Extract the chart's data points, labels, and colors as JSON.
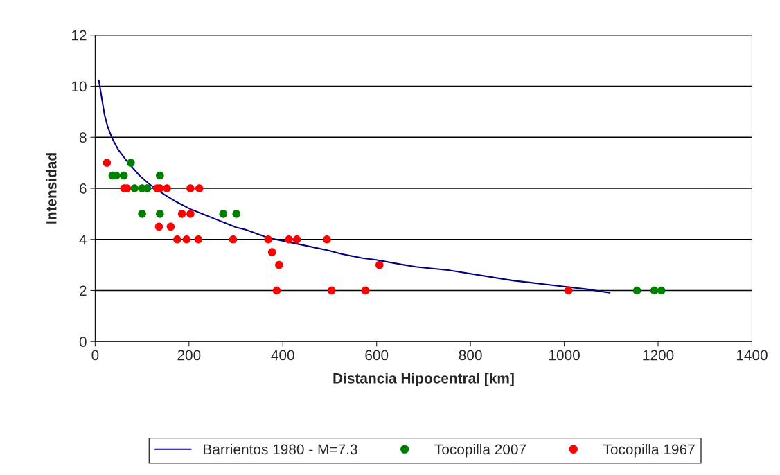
{
  "chart_data": {
    "type": "scatter",
    "xlabel": "Distancia Hipocentral [km]",
    "ylabel": "Intensidad",
    "xlim": [
      0,
      1400
    ],
    "ylim": [
      0,
      12
    ],
    "xticks": [
      0,
      200,
      400,
      600,
      800,
      1000,
      1200,
      1400
    ],
    "yticks": [
      0,
      2,
      4,
      6,
      8,
      10,
      12
    ],
    "grid": "y",
    "legend": "bottom",
    "marker": "circle",
    "series": [
      {
        "name": "Barrientos 1980 - M=7.3",
        "type": "line",
        "color": "#000080",
        "marker": "none",
        "line_style": "solid",
        "x": [
          7.9,
          15.3,
          20.2,
          27.6,
          37.5,
          49.7,
          64.5,
          79.3,
          94.1,
          113.8,
          133.5,
          153,
          173,
          202.5,
          227,
          251.5,
          276,
          301,
          321,
          369,
          427,
          496,
          525,
          570,
          599,
          653,
          683,
          752,
          890,
          974,
          1048,
          1097
        ],
        "values": [
          10.22,
          9.4,
          8.86,
          8.36,
          7.91,
          7.5,
          7.14,
          6.82,
          6.51,
          6.19,
          5.92,
          5.69,
          5.47,
          5.19,
          5.01,
          4.83,
          4.65,
          4.47,
          4.38,
          4.06,
          3.84,
          3.57,
          3.43,
          3.27,
          3.2,
          3.02,
          2.93,
          2.8,
          2.39,
          2.21,
          2.05,
          1.91
        ]
      },
      {
        "name": "Tocopilla 2007",
        "color": "#008000",
        "x": [
          76,
          37,
          45,
          61,
          138,
          84,
          100,
          111,
          100,
          138,
          273,
          301,
          1155,
          1192,
          1207
        ],
        "values": [
          7,
          6.5,
          6.5,
          6.5,
          6.5,
          6,
          6,
          6,
          5,
          5,
          5,
          5,
          2,
          2,
          2
        ]
      },
      {
        "name": "Tocopilla 1967",
        "color": "#ff0000",
        "x": [
          25,
          62,
          68,
          132,
          138,
          153,
          203,
          222,
          185,
          203,
          136,
          161,
          175,
          195,
          220,
          294,
          369,
          413,
          430,
          494,
          377,
          392,
          606,
          387,
          504,
          576,
          1009
        ],
        "values": [
          7,
          6,
          6,
          6,
          6,
          6,
          6,
          6,
          5,
          5,
          4.5,
          4.5,
          4,
          4,
          4,
          4,
          4,
          4,
          4,
          4,
          3.5,
          3,
          3,
          2,
          2,
          2,
          2
        ]
      }
    ]
  }
}
